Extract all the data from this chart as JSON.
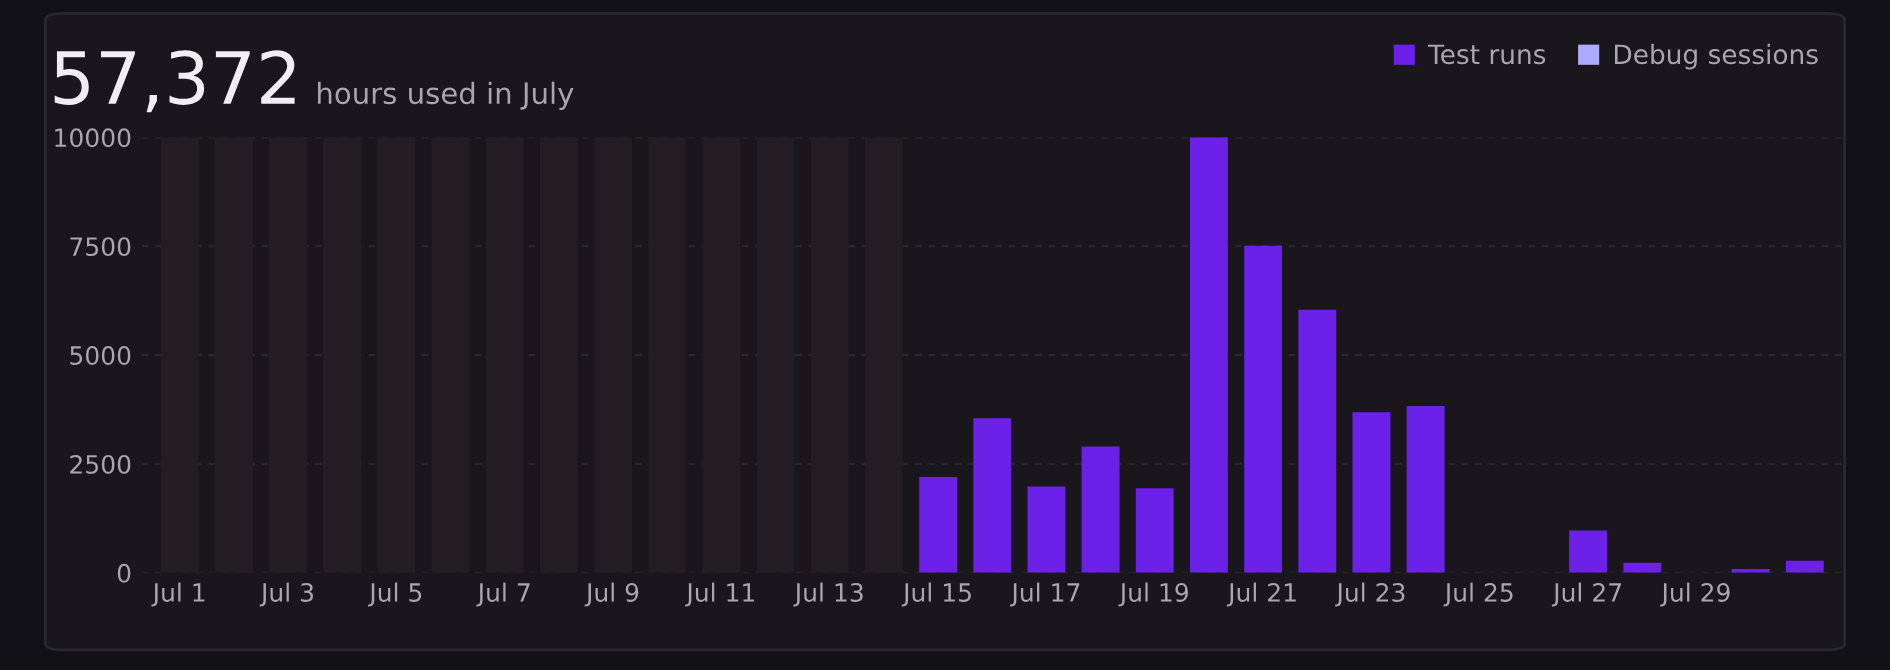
{
  "chart_data": {
    "type": "bar",
    "title": "57,372",
    "subtitle": "hours used in July",
    "categories": [
      "Jul 1",
      null,
      "Jul 3",
      null,
      "Jul 5",
      null,
      "Jul 7",
      null,
      "Jul 9",
      null,
      "Jul 11",
      null,
      "Jul 13",
      null,
      "Jul 15",
      null,
      "Jul 17",
      null,
      "Jul 19",
      null,
      "Jul 21",
      null,
      "Jul 23",
      null,
      "Jul 25",
      null,
      "Jul 27",
      null,
      "Jul 29",
      null,
      null
    ],
    "series": [
      {
        "color": "#221e21",
        "values": [
          10000,
          10000,
          10000,
          10000,
          10000,
          10000,
          10000,
          10000,
          10000,
          10000,
          10000,
          10000,
          10000,
          10000,
          null,
          null,
          null,
          null,
          null,
          null,
          null,
          null,
          null,
          null,
          null,
          null,
          null,
          null,
          null,
          null,
          null
        ]
      },
      {
        "name": "Test runs",
        "color": "#6b21e8",
        "values": [
          null,
          null,
          null,
          null,
          null,
          null,
          null,
          null,
          null,
          null,
          null,
          null,
          null,
          null,
          2200,
          3550,
          1980,
          2900,
          1940,
          10000,
          7510,
          6040,
          3690,
          3830,
          0,
          0,
          970,
          230,
          0,
          90,
          280
        ]
      },
      {
        "name": "Debug sessions",
        "color": "#aeaaff",
        "values": [
          null,
          null,
          null,
          null,
          null,
          null,
          null,
          null,
          null,
          null,
          null,
          null,
          null,
          null,
          null,
          null,
          null,
          null,
          null,
          null,
          null,
          null,
          null,
          null,
          null,
          null,
          null,
          null,
          null,
          null,
          null
        ]
      }
    ],
    "ylim": [
      0,
      10000
    ],
    "yticks": [
      0,
      2500,
      5000,
      7500,
      10000
    ],
    "grid": "y",
    "legend": "top right"
  }
}
